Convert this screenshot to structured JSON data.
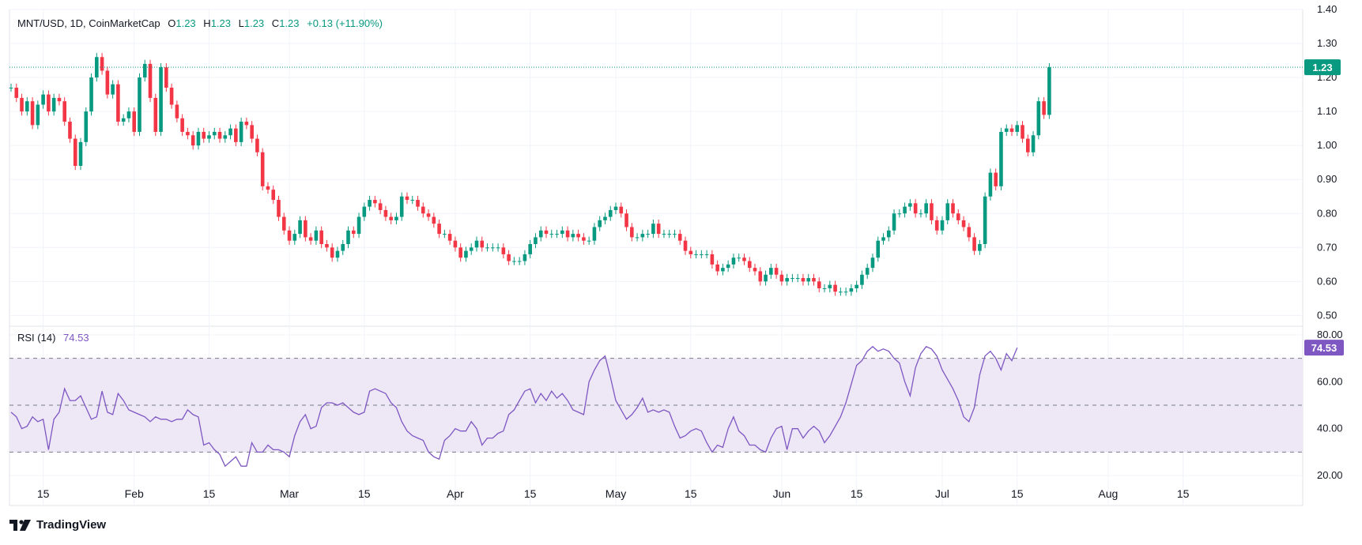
{
  "header": {
    "symbol": "MNT/USD, 1D, CoinMarketCap",
    "o_label": "O",
    "o_value": "1.23",
    "h_label": "H",
    "h_value": "1.23",
    "l_label": "L",
    "l_value": "1.23",
    "c_label": "C",
    "c_value": "1.23",
    "change": "+0.13 (+11.90%)"
  },
  "rsi_header": {
    "label": "RSI (14)",
    "value": "74.53"
  },
  "brand": {
    "name": "TradingView"
  },
  "colors": {
    "up": "#089981",
    "down": "#f23645",
    "rsi": "#7e57c2",
    "rsi_band": "#ede7f6",
    "grid": "#f0f3fa",
    "text": "#131722"
  },
  "chart_data": [
    {
      "type": "candlestick",
      "title": "MNT/USD, 1D, CoinMarketCap",
      "y_ticks": [
        "0.50",
        "0.60",
        "0.70",
        "0.80",
        "0.90",
        "1.00",
        "1.10",
        "1.20",
        "1.30",
        "1.40"
      ],
      "ylim": [
        0.48,
        1.4
      ],
      "x_ticks": [
        "15",
        "Feb",
        "15",
        "Mar",
        "15",
        "Apr",
        "15",
        "May",
        "15",
        "Jun",
        "15",
        "Jul",
        "15",
        "Aug",
        "15"
      ],
      "last_price": "1.23",
      "x_start": "2024-01-09",
      "closes": [
        1.17,
        1.14,
        1.1,
        1.13,
        1.06,
        1.12,
        1.15,
        1.1,
        1.14,
        1.13,
        1.07,
        1.02,
        0.94,
        1.01,
        1.1,
        1.2,
        1.26,
        1.22,
        1.15,
        1.18,
        1.07,
        1.08,
        1.1,
        1.04,
        1.2,
        1.24,
        1.14,
        1.04,
        1.23,
        1.17,
        1.12,
        1.08,
        1.04,
        1.03,
        1.0,
        1.04,
        1.02,
        1.03,
        1.04,
        1.02,
        1.03,
        1.05,
        1.01,
        1.07,
        1.06,
        1.02,
        0.98,
        0.88,
        0.87,
        0.84,
        0.79,
        0.75,
        0.72,
        0.74,
        0.78,
        0.73,
        0.72,
        0.75,
        0.71,
        0.7,
        0.67,
        0.69,
        0.71,
        0.75,
        0.74,
        0.79,
        0.82,
        0.84,
        0.83,
        0.81,
        0.79,
        0.78,
        0.79,
        0.85,
        0.84,
        0.84,
        0.82,
        0.8,
        0.79,
        0.77,
        0.74,
        0.74,
        0.72,
        0.7,
        0.67,
        0.69,
        0.7,
        0.72,
        0.7,
        0.7,
        0.7,
        0.7,
        0.68,
        0.66,
        0.66,
        0.66,
        0.68,
        0.71,
        0.73,
        0.75,
        0.74,
        0.74,
        0.74,
        0.75,
        0.73,
        0.74,
        0.73,
        0.72,
        0.72,
        0.76,
        0.78,
        0.79,
        0.81,
        0.82,
        0.8,
        0.76,
        0.73,
        0.73,
        0.74,
        0.74,
        0.77,
        0.74,
        0.74,
        0.74,
        0.74,
        0.72,
        0.69,
        0.68,
        0.68,
        0.68,
        0.68,
        0.65,
        0.63,
        0.64,
        0.65,
        0.67,
        0.67,
        0.66,
        0.64,
        0.63,
        0.6,
        0.62,
        0.64,
        0.62,
        0.6,
        0.61,
        0.61,
        0.61,
        0.6,
        0.61,
        0.6,
        0.58,
        0.58,
        0.59,
        0.57,
        0.57,
        0.57,
        0.58,
        0.59,
        0.62,
        0.64,
        0.67,
        0.72,
        0.73,
        0.75,
        0.8,
        0.8,
        0.82,
        0.83,
        0.8,
        0.8,
        0.83,
        0.78,
        0.75,
        0.78,
        0.83,
        0.8,
        0.78,
        0.76,
        0.73,
        0.69,
        0.71,
        0.85,
        0.92,
        0.88,
        1.04,
        1.05,
        1.04,
        1.06,
        1.02,
        0.98,
        1.03,
        1.13,
        1.09,
        1.23
      ]
    },
    {
      "type": "line",
      "title": "RSI (14)",
      "series": [
        {
          "name": "RSI (14)",
          "last": "74.53"
        }
      ],
      "y_ticks": [
        "20.00",
        "40.00",
        "60.00",
        "80.00"
      ],
      "ylim": [
        18,
        82
      ],
      "band_levels": [
        30,
        50,
        70
      ],
      "values": [
        47,
        45,
        40,
        41,
        45,
        43,
        44,
        31,
        44,
        47,
        57,
        52,
        52,
        54,
        49,
        44,
        45,
        56,
        47,
        46,
        55,
        52,
        48,
        47,
        46,
        45,
        43,
        45,
        44,
        44,
        43,
        44,
        44,
        48,
        46,
        45,
        33,
        34,
        31,
        29,
        24,
        26,
        28,
        24,
        24,
        34,
        30,
        30,
        33,
        31,
        31,
        30,
        28,
        37,
        43,
        46,
        40,
        41,
        49,
        51,
        51,
        50,
        51,
        49,
        47,
        46,
        47,
        56,
        57,
        56,
        55,
        51,
        49,
        43,
        39,
        37,
        36,
        35,
        30,
        28,
        27,
        35,
        37,
        40,
        39,
        39,
        43,
        40,
        33,
        36,
        36,
        38,
        39,
        46,
        48,
        52,
        56,
        57,
        51,
        55,
        52,
        56,
        53,
        55,
        52,
        48,
        47,
        46,
        60,
        65,
        69,
        71,
        62,
        52,
        48,
        44,
        46,
        49,
        53,
        47,
        48,
        47,
        48,
        47,
        41,
        36,
        37,
        39,
        40,
        39,
        34,
        30,
        33,
        32,
        40,
        45,
        39,
        37,
        33,
        33,
        31,
        30,
        36,
        40,
        41,
        31,
        40,
        40,
        36,
        39,
        41,
        39,
        34,
        37,
        41,
        45,
        51,
        59,
        67,
        69,
        73,
        75,
        73,
        74,
        73,
        70,
        68,
        60,
        54,
        66,
        72,
        75,
        74,
        71,
        65,
        61,
        57,
        52,
        45,
        43,
        49,
        63,
        71,
        73,
        70,
        65,
        72,
        69,
        74.53
      ]
    }
  ]
}
